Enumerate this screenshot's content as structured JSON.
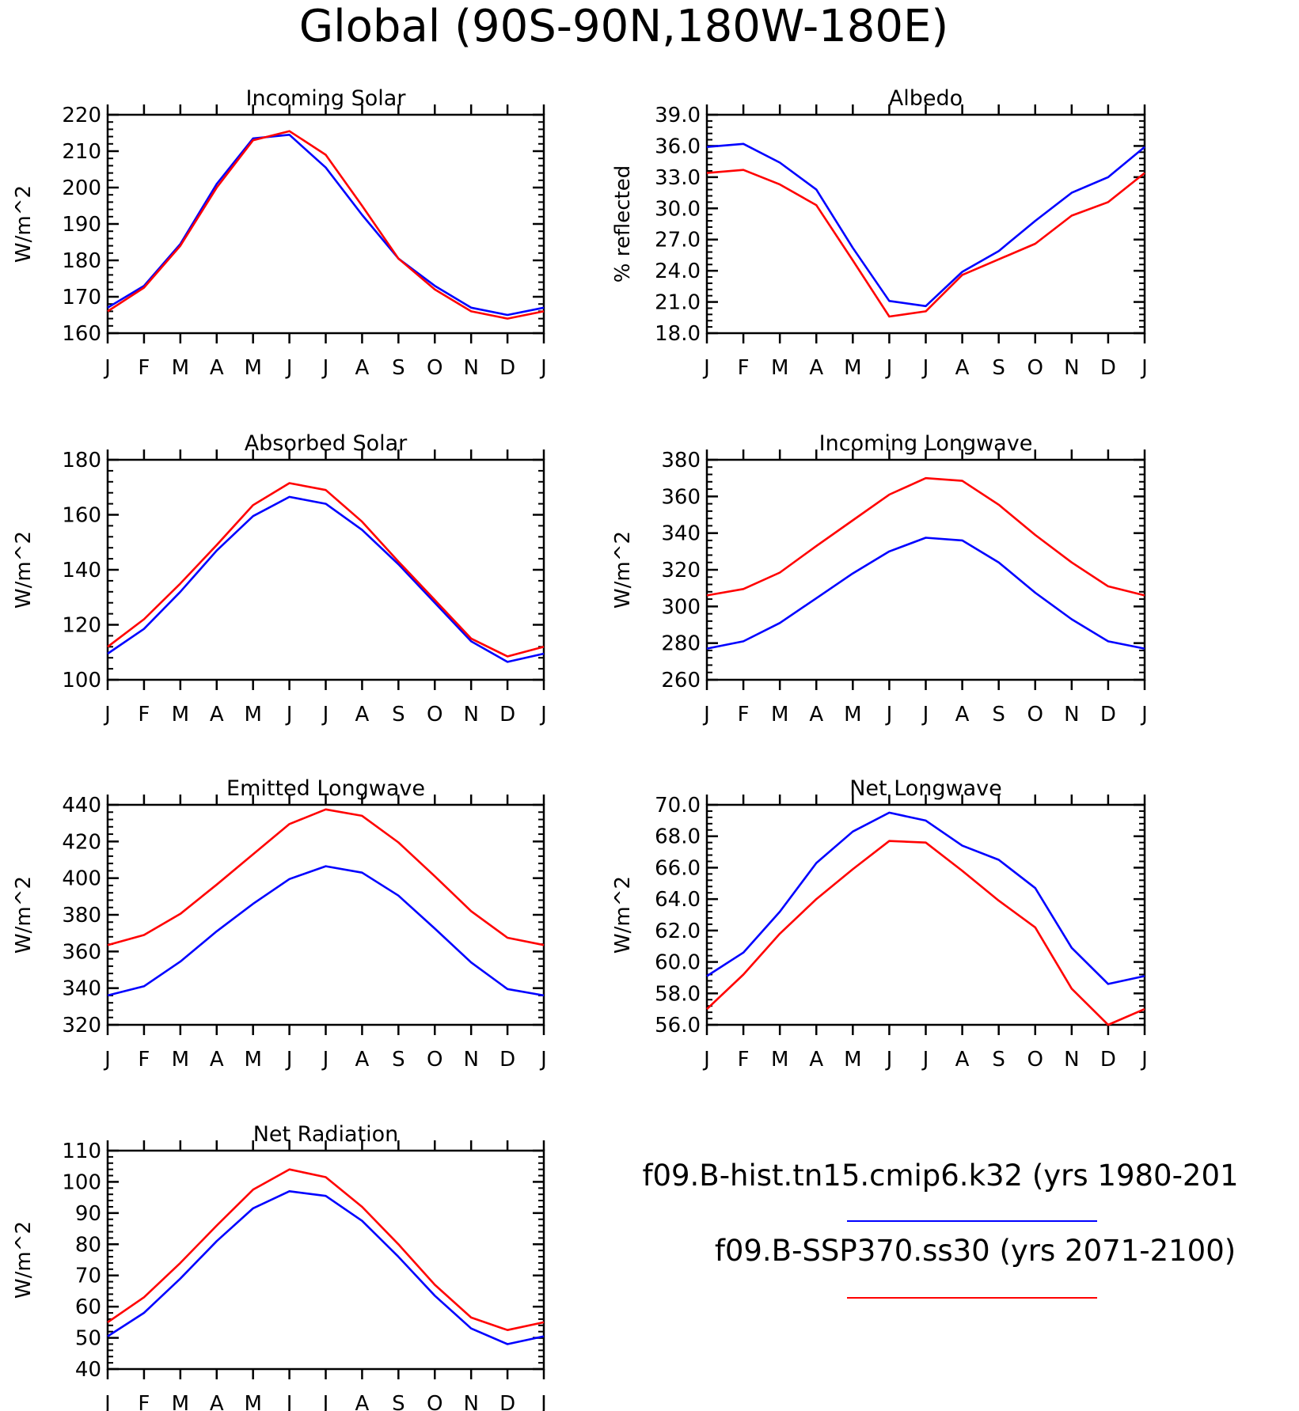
{
  "page": {
    "title": "Global (90S-90N,180W-180E)"
  },
  "legend": {
    "entries": [
      {
        "label": "f09.B-hist.tn15.cmip6.k32 (yrs 1980-201",
        "color": "#0000ff"
      },
      {
        "label": "f09.B-SSP370.ss30 (yrs 2071-2100)",
        "color": "#ff0000"
      }
    ]
  },
  "colors": {
    "hist": "#0000ff",
    "ssp": "#ff0000",
    "axis": "#000000"
  },
  "months": [
    "J",
    "F",
    "M",
    "A",
    "M",
    "J",
    "J",
    "A",
    "S",
    "O",
    "N",
    "D",
    "J"
  ],
  "chart_data": [
    {
      "type": "line",
      "title": "Incoming Solar",
      "ylabel": "W/m^2",
      "ylim": [
        160,
        220
      ],
      "yticks": [
        "160",
        "170",
        "180",
        "190",
        "200",
        "210",
        "220"
      ],
      "series": [
        {
          "values": [
            167,
            173,
            184.5,
            201,
            213.5,
            214.5,
            205.5,
            192.5,
            180.5,
            173,
            167,
            165,
            167
          ]
        },
        {
          "values": [
            166,
            172.5,
            184,
            200,
            213,
            215.5,
            209,
            195,
            180.5,
            172,
            166,
            164,
            166
          ]
        }
      ]
    },
    {
      "type": "line",
      "title": "Albedo",
      "ylabel": "% reflected",
      "ylim": [
        18,
        39
      ],
      "yticks": [
        "18.0",
        "21.0",
        "24.0",
        "27.0",
        "30.0",
        "33.0",
        "36.0",
        "39.0"
      ],
      "series": [
        {
          "values": [
            35.9,
            36.2,
            34.4,
            31.8,
            26.2,
            21.1,
            20.6,
            23.9,
            25.9,
            28.8,
            31.5,
            33.0,
            35.9
          ]
        },
        {
          "values": [
            33.4,
            33.7,
            32.3,
            30.3,
            25.0,
            19.6,
            20.1,
            23.6,
            25.1,
            26.6,
            29.3,
            30.6,
            33.4
          ]
        }
      ]
    },
    {
      "type": "line",
      "title": "Absorbed Solar",
      "ylabel": "W/m^2",
      "ylim": [
        100,
        180
      ],
      "yticks": [
        "100",
        "120",
        "140",
        "160",
        "180"
      ],
      "series": [
        {
          "values": [
            109.5,
            118.5,
            132,
            147,
            159.5,
            166.5,
            164,
            154.5,
            142,
            128,
            114,
            106.5,
            109.5
          ]
        },
        {
          "values": [
            112,
            122,
            135,
            149,
            163.5,
            171.5,
            169,
            157.5,
            143,
            129,
            115,
            108.5,
            112
          ]
        }
      ]
    },
    {
      "type": "line",
      "title": "Incoming Longwave",
      "ylabel": "W/m^2",
      "ylim": [
        260,
        380
      ],
      "yticks": [
        "260",
        "280",
        "300",
        "320",
        "340",
        "360",
        "380"
      ],
      "series": [
        {
          "values": [
            277,
            281,
            291,
            304.5,
            318,
            330,
            337.5,
            336,
            324,
            307.5,
            293,
            281,
            277
          ]
        },
        {
          "values": [
            306,
            309.5,
            318.5,
            333,
            347,
            361,
            370,
            368.5,
            355.5,
            339,
            324,
            311,
            306
          ]
        }
      ]
    },
    {
      "type": "line",
      "title": "Emitted Longwave",
      "ylabel": "W/m^2",
      "ylim": [
        320,
        440
      ],
      "yticks": [
        "320",
        "340",
        "360",
        "380",
        "400",
        "420",
        "440"
      ],
      "series": [
        {
          "values": [
            336,
            341,
            354.5,
            371,
            386,
            399.5,
            406.5,
            403,
            390.5,
            372.5,
            354,
            339.5,
            336
          ]
        },
        {
          "values": [
            363.5,
            369,
            380.5,
            396.5,
            413,
            429.5,
            437.5,
            434,
            419.5,
            401,
            382,
            367.5,
            363.5
          ]
        }
      ]
    },
    {
      "type": "line",
      "title": "Net Longwave",
      "ylabel": "W/m^2",
      "ylim": [
        56,
        70
      ],
      "yticks": [
        "56.0",
        "58.0",
        "60.0",
        "62.0",
        "64.0",
        "66.0",
        "68.0",
        "70.0"
      ],
      "series": [
        {
          "values": [
            59.1,
            60.6,
            63.2,
            66.3,
            68.3,
            69.5,
            69.0,
            67.4,
            66.5,
            64.7,
            60.9,
            58.6,
            59.1
          ]
        },
        {
          "values": [
            57.0,
            59.2,
            61.8,
            64.0,
            65.9,
            67.7,
            67.6,
            65.8,
            63.9,
            62.2,
            58.3,
            56.0,
            57.0
          ]
        }
      ]
    },
    {
      "type": "line",
      "title": "Net Radiation",
      "ylabel": "W/m^2",
      "ylim": [
        40,
        110
      ],
      "yticks": [
        "40",
        "50",
        "60",
        "70",
        "80",
        "90",
        "100",
        "110"
      ],
      "series": [
        {
          "values": [
            50.5,
            58,
            69,
            81,
            91.5,
            97,
            95.5,
            87.5,
            76,
            63.5,
            53,
            48,
            50.5
          ]
        },
        {
          "values": [
            55,
            63,
            74,
            86,
            97.5,
            104,
            101.5,
            92,
            80,
            67,
            56.5,
            52.5,
            55
          ]
        }
      ]
    }
  ]
}
